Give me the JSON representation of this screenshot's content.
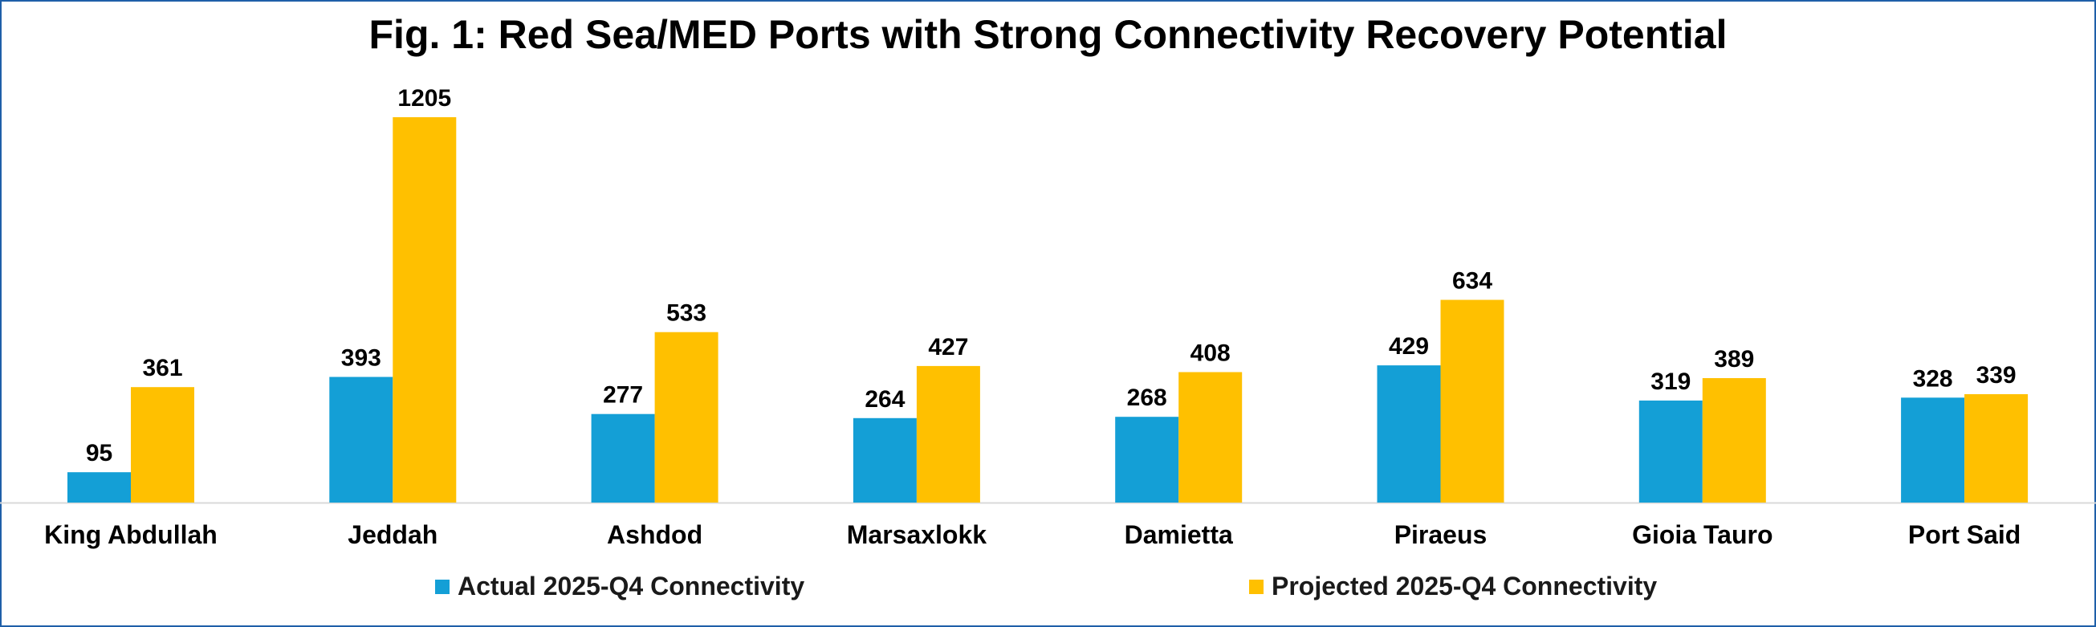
{
  "chart_data": {
    "type": "bar",
    "title": "Fig. 1: Red Sea/MED Ports with Strong Connectivity Recovery Potential",
    "categories": [
      "King Abdullah",
      "Jeddah",
      "Ashdod",
      "Marsaxlokk",
      "Damietta",
      "Piraeus",
      "Gioia Tauro",
      "Port Said"
    ],
    "series": [
      {
        "name": "Actual 2025-Q4 Connectivity",
        "color": "#149fd6",
        "values": [
          95,
          393,
          277,
          264,
          268,
          429,
          319,
          328
        ]
      },
      {
        "name": "Projected 2025-Q4 Connectivity",
        "color": "#ffc000",
        "values": [
          361,
          1205,
          533,
          427,
          408,
          634,
          389,
          339
        ]
      }
    ],
    "ylim": [
      0,
      1205
    ],
    "grid": false,
    "data_labels": true,
    "legend_position": "bottom"
  }
}
